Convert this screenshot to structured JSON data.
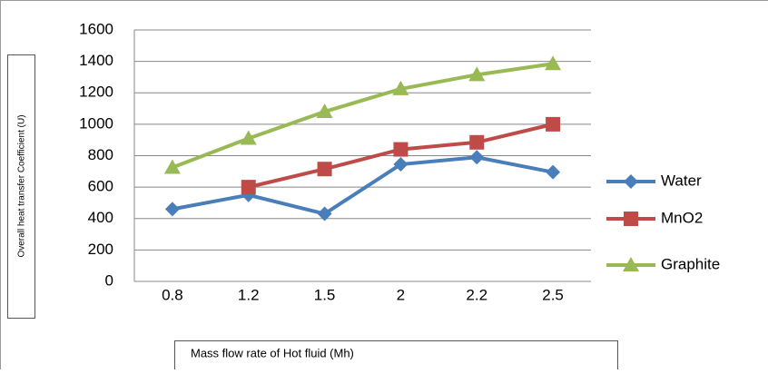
{
  "chart_data": {
    "type": "line",
    "x_label": "Mass flow rate of Hot fluid (Mh)",
    "y_label": "Overall heat transfer Coefficient (U)",
    "categories": [
      "0.8",
      "1.2",
      "1.5",
      "2",
      "2.2",
      "2.5"
    ],
    "series": [
      {
        "name": "Water",
        "color": "#4a7ebb",
        "marker": "diamond",
        "values": [
          460,
          550,
          430,
          745,
          790,
          695
        ]
      },
      {
        "name": "MnO2",
        "color": "#be4b48",
        "marker": "square",
        "values": [
          null,
          600,
          715,
          840,
          885,
          1000
        ]
      },
      {
        "name": "Graphite",
        "color": "#98b954",
        "marker": "triangle",
        "values": [
          725,
          910,
          1080,
          1225,
          1315,
          1385
        ]
      }
    ],
    "ylim": [
      0,
      1600
    ],
    "yticks": [
      0,
      200,
      400,
      600,
      800,
      1000,
      1200,
      1400,
      1600
    ],
    "grid": true,
    "legend": "right"
  }
}
